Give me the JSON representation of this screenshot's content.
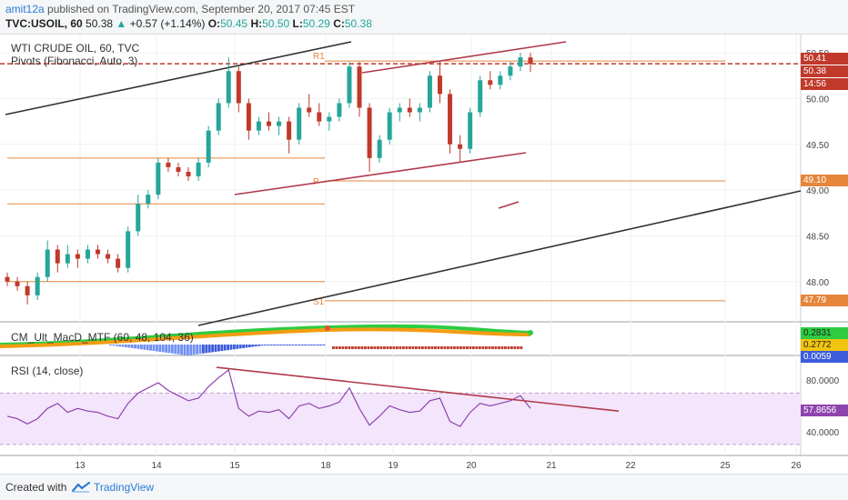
{
  "header": {
    "author": "amit12a",
    "published_text": "published on TradingView.com, September 20, 2017 07:45 EST",
    "symbol_line": "TVC:USOIL, 60",
    "last": "50.38",
    "change": "+0.57 (+1.14%)",
    "open_label": "O:",
    "open": "50.45",
    "high_label": "H:",
    "high": "50.50",
    "low_label": "L:",
    "low": "50.29",
    "close_label": "C:",
    "close": "50.38"
  },
  "main_panel": {
    "title": "WTI CRUDE OIL, 60, TVC",
    "indicator": "Pivots (Fibonacci, Auto, 3)",
    "pivot_labels": {
      "r1": "R1",
      "p": "P",
      "s1": "S1"
    },
    "price_tags": {
      "current": "50.41",
      "close": "50.38",
      "countdown": "14:56",
      "pivot": "49.10",
      "s1": "47.79"
    }
  },
  "macd_panel": {
    "title": "CM_Ult_MacD_MTF (60, 48, 104, 36)",
    "tags": [
      "0.2831",
      "0.2772",
      "0.0059"
    ]
  },
  "rsi_panel": {
    "title": "RSI (14, close)",
    "tag": "57.8656"
  },
  "footer": {
    "created_with": "Created with",
    "brand": "TradingView"
  },
  "colors": {
    "up": "#26a69a",
    "down": "#ef5350",
    "candle_up": "#26a69a",
    "candle_down": "#c0392b",
    "trend_dark": "#333333",
    "trend_red": "#b03a4a",
    "pivot_line": "#e6863b",
    "price_dashed": "#c0392b",
    "rsi_line": "#8e44ad",
    "rsi_band": "#f3e5fb",
    "accent": "#2a7bd4"
  },
  "chart_data": {
    "type": "candlestick",
    "title": "WTI CRUDE OIL, 60, TVC",
    "price_axis": {
      "ticks": [
        "50.50",
        "50.00",
        "49.50",
        "49.00",
        "48.50",
        "48.00"
      ],
      "range": [
        47.65,
        50.62
      ]
    },
    "x_ticks": [
      "13",
      "14",
      "15",
      "18",
      "19",
      "20",
      "21",
      "22",
      "25",
      "26"
    ],
    "pivots": {
      "R1": 50.41,
      "P": 49.1,
      "S1": 47.79
    },
    "candles": [
      {
        "o": 48.05,
        "h": 48.1,
        "l": 47.95,
        "c": 48.0
      },
      {
        "o": 48.0,
        "h": 48.05,
        "l": 47.9,
        "c": 47.95
      },
      {
        "o": 47.95,
        "h": 48.0,
        "l": 47.75,
        "c": 47.85
      },
      {
        "o": 47.85,
        "h": 48.1,
        "l": 47.8,
        "c": 48.05
      },
      {
        "o": 48.05,
        "h": 48.45,
        "l": 48.0,
        "c": 48.35
      },
      {
        "o": 48.35,
        "h": 48.4,
        "l": 48.1,
        "c": 48.2
      },
      {
        "o": 48.2,
        "h": 48.4,
        "l": 48.15,
        "c": 48.3
      },
      {
        "o": 48.3,
        "h": 48.35,
        "l": 48.15,
        "c": 48.25
      },
      {
        "o": 48.25,
        "h": 48.4,
        "l": 48.2,
        "c": 48.35
      },
      {
        "o": 48.35,
        "h": 48.4,
        "l": 48.25,
        "c": 48.3
      },
      {
        "o": 48.3,
        "h": 48.35,
        "l": 48.2,
        "c": 48.25
      },
      {
        "o": 48.25,
        "h": 48.3,
        "l": 48.1,
        "c": 48.15
      },
      {
        "o": 48.15,
        "h": 48.6,
        "l": 48.1,
        "c": 48.55
      },
      {
        "o": 48.55,
        "h": 48.95,
        "l": 48.5,
        "c": 48.85
      },
      {
        "o": 48.85,
        "h": 49.0,
        "l": 48.8,
        "c": 48.95
      },
      {
        "o": 48.95,
        "h": 49.35,
        "l": 48.9,
        "c": 49.3
      },
      {
        "o": 49.3,
        "h": 49.35,
        "l": 49.2,
        "c": 49.25
      },
      {
        "o": 49.25,
        "h": 49.3,
        "l": 49.15,
        "c": 49.2
      },
      {
        "o": 49.2,
        "h": 49.25,
        "l": 49.1,
        "c": 49.15
      },
      {
        "o": 49.15,
        "h": 49.35,
        "l": 49.1,
        "c": 49.3
      },
      {
        "o": 49.3,
        "h": 49.7,
        "l": 49.25,
        "c": 49.65
      },
      {
        "o": 49.65,
        "h": 50.0,
        "l": 49.6,
        "c": 49.95
      },
      {
        "o": 49.95,
        "h": 50.45,
        "l": 49.9,
        "c": 50.3
      },
      {
        "o": 50.3,
        "h": 50.35,
        "l": 49.85,
        "c": 49.95
      },
      {
        "o": 49.95,
        "h": 50.0,
        "l": 49.55,
        "c": 49.65
      },
      {
        "o": 49.65,
        "h": 49.8,
        "l": 49.6,
        "c": 49.75
      },
      {
        "o": 49.75,
        "h": 49.85,
        "l": 49.65,
        "c": 49.7
      },
      {
        "o": 49.7,
        "h": 49.8,
        "l": 49.6,
        "c": 49.75
      },
      {
        "o": 49.75,
        "h": 49.8,
        "l": 49.4,
        "c": 49.55
      },
      {
        "o": 49.55,
        "h": 49.95,
        "l": 49.5,
        "c": 49.9
      },
      {
        "o": 49.9,
        "h": 50.05,
        "l": 49.8,
        "c": 49.85
      },
      {
        "o": 49.85,
        "h": 49.95,
        "l": 49.7,
        "c": 49.75
      },
      {
        "o": 49.75,
        "h": 49.85,
        "l": 49.65,
        "c": 49.8
      },
      {
        "o": 49.8,
        "h": 50.0,
        "l": 49.75,
        "c": 49.95
      },
      {
        "o": 49.95,
        "h": 50.4,
        "l": 49.9,
        "c": 50.35
      },
      {
        "o": 50.35,
        "h": 50.4,
        "l": 49.8,
        "c": 49.9
      },
      {
        "o": 49.9,
        "h": 49.95,
        "l": 49.2,
        "c": 49.35
      },
      {
        "o": 49.35,
        "h": 49.6,
        "l": 49.3,
        "c": 49.55
      },
      {
        "o": 49.55,
        "h": 49.9,
        "l": 49.5,
        "c": 49.85
      },
      {
        "o": 49.85,
        "h": 49.95,
        "l": 49.75,
        "c": 49.9
      },
      {
        "o": 49.9,
        "h": 50.0,
        "l": 49.8,
        "c": 49.85
      },
      {
        "o": 49.85,
        "h": 49.95,
        "l": 49.75,
        "c": 49.9
      },
      {
        "o": 49.9,
        "h": 50.3,
        "l": 49.85,
        "c": 50.25
      },
      {
        "o": 50.25,
        "h": 50.4,
        "l": 49.95,
        "c": 50.05
      },
      {
        "o": 50.05,
        "h": 50.1,
        "l": 49.4,
        "c": 49.5
      },
      {
        "o": 49.5,
        "h": 49.6,
        "l": 49.3,
        "c": 49.45
      },
      {
        "o": 49.45,
        "h": 49.9,
        "l": 49.4,
        "c": 49.85
      },
      {
        "o": 49.85,
        "h": 50.25,
        "l": 49.8,
        "c": 50.2
      },
      {
        "o": 50.2,
        "h": 50.3,
        "l": 50.1,
        "c": 50.15
      },
      {
        "o": 50.15,
        "h": 50.3,
        "l": 50.1,
        "c": 50.25
      },
      {
        "o": 50.25,
        "h": 50.4,
        "l": 50.2,
        "c": 50.35
      },
      {
        "o": 50.35,
        "h": 50.5,
        "l": 50.3,
        "c": 50.45
      },
      {
        "o": 50.45,
        "h": 50.5,
        "l": 50.29,
        "c": 50.38
      }
    ],
    "macd_axis": {
      "tags": [
        "0.2831",
        "0.2772",
        "0.0059"
      ]
    },
    "rsi": {
      "axis_ticks": [
        "80.0000",
        "40.0000"
      ],
      "range": [
        25,
        95
      ],
      "bands": [
        70,
        30
      ],
      "last": 57.8656,
      "values": [
        52,
        50,
        46,
        50,
        58,
        62,
        55,
        58,
        56,
        55,
        52,
        50,
        62,
        70,
        74,
        78,
        72,
        68,
        64,
        66,
        75,
        82,
        88,
        58,
        52,
        56,
        55,
        57,
        50,
        60,
        62,
        58,
        60,
        63,
        74,
        58,
        45,
        52,
        60,
        57,
        55,
        56,
        64,
        66,
        48,
        44,
        55,
        62,
        60,
        62,
        64,
        68,
        58
      ]
    }
  }
}
